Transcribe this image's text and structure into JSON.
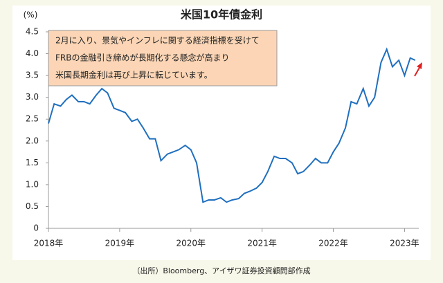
{
  "chart_data": {
    "type": "line",
    "title": "米国10年債金利",
    "y_label": "(%)",
    "annotations": [
      "2月に入り、景気やインフレに関する経済指標を受けて",
      "FRBの金融引き締めが長期化する懸念が高まり",
      "米国長期金利は再び上昇に転じています。"
    ],
    "source": "（出所）Bloomberg、アイザワ証券投資顧問部作成",
    "x": [
      2018.0,
      2018.08,
      2018.17,
      2018.25,
      2018.33,
      2018.42,
      2018.5,
      2018.58,
      2018.67,
      2018.75,
      2018.83,
      2018.92,
      2019.0,
      2019.08,
      2019.17,
      2019.25,
      2019.33,
      2019.42,
      2019.5,
      2019.58,
      2019.67,
      2019.75,
      2019.83,
      2019.92,
      2020.0,
      2020.08,
      2020.17,
      2020.25,
      2020.33,
      2020.42,
      2020.5,
      2020.58,
      2020.67,
      2020.75,
      2020.83,
      2020.92,
      2021.0,
      2021.08,
      2021.17,
      2021.25,
      2021.33,
      2021.42,
      2021.5,
      2021.58,
      2021.67,
      2021.75,
      2021.83,
      2021.92,
      2022.0,
      2022.08,
      2022.17,
      2022.25,
      2022.33,
      2022.42,
      2022.5,
      2022.58,
      2022.67,
      2022.75,
      2022.83,
      2022.92,
      2023.0,
      2023.08,
      2023.15
    ],
    "series": [
      {
        "name": "米国10年債金利",
        "color": "#1f6fbf",
        "values": [
          2.4,
          2.85,
          2.8,
          2.95,
          3.05,
          2.9,
          2.9,
          2.85,
          3.05,
          3.2,
          3.1,
          2.75,
          2.7,
          2.65,
          2.45,
          2.5,
          2.3,
          2.05,
          2.05,
          1.55,
          1.7,
          1.75,
          1.8,
          1.9,
          1.8,
          1.5,
          0.6,
          0.65,
          0.65,
          0.7,
          0.6,
          0.65,
          0.68,
          0.8,
          0.85,
          0.92,
          1.05,
          1.3,
          1.65,
          1.6,
          1.6,
          1.5,
          1.25,
          1.3,
          1.45,
          1.6,
          1.5,
          1.5,
          1.75,
          1.95,
          2.3,
          2.9,
          2.85,
          3.2,
          2.8,
          3.0,
          3.8,
          4.1,
          3.7,
          3.85,
          3.5,
          3.9,
          3.85
        ]
      }
    ],
    "xlim": [
      2018,
      2023.2
    ],
    "xticks": [
      {
        "value": 2018,
        "label": "2018年"
      },
      {
        "value": 2019,
        "label": "2019年"
      },
      {
        "value": 2020,
        "label": "2020年"
      },
      {
        "value": 2021,
        "label": "2021年"
      },
      {
        "value": 2022,
        "label": "2022年"
      },
      {
        "value": 2023,
        "label": "2023年"
      }
    ],
    "ylim": [
      0,
      4.5
    ],
    "yticks": [
      0,
      0.5,
      {
        "value": 1,
        "label": "1.0"
      },
      1.5,
      {
        "value": 2,
        "label": "2.0"
      },
      2.5,
      {
        "value": 3,
        "label": "3.0"
      },
      3.5,
      {
        "value": 4,
        "label": "4.0"
      },
      4.5
    ],
    "grid": false
  }
}
